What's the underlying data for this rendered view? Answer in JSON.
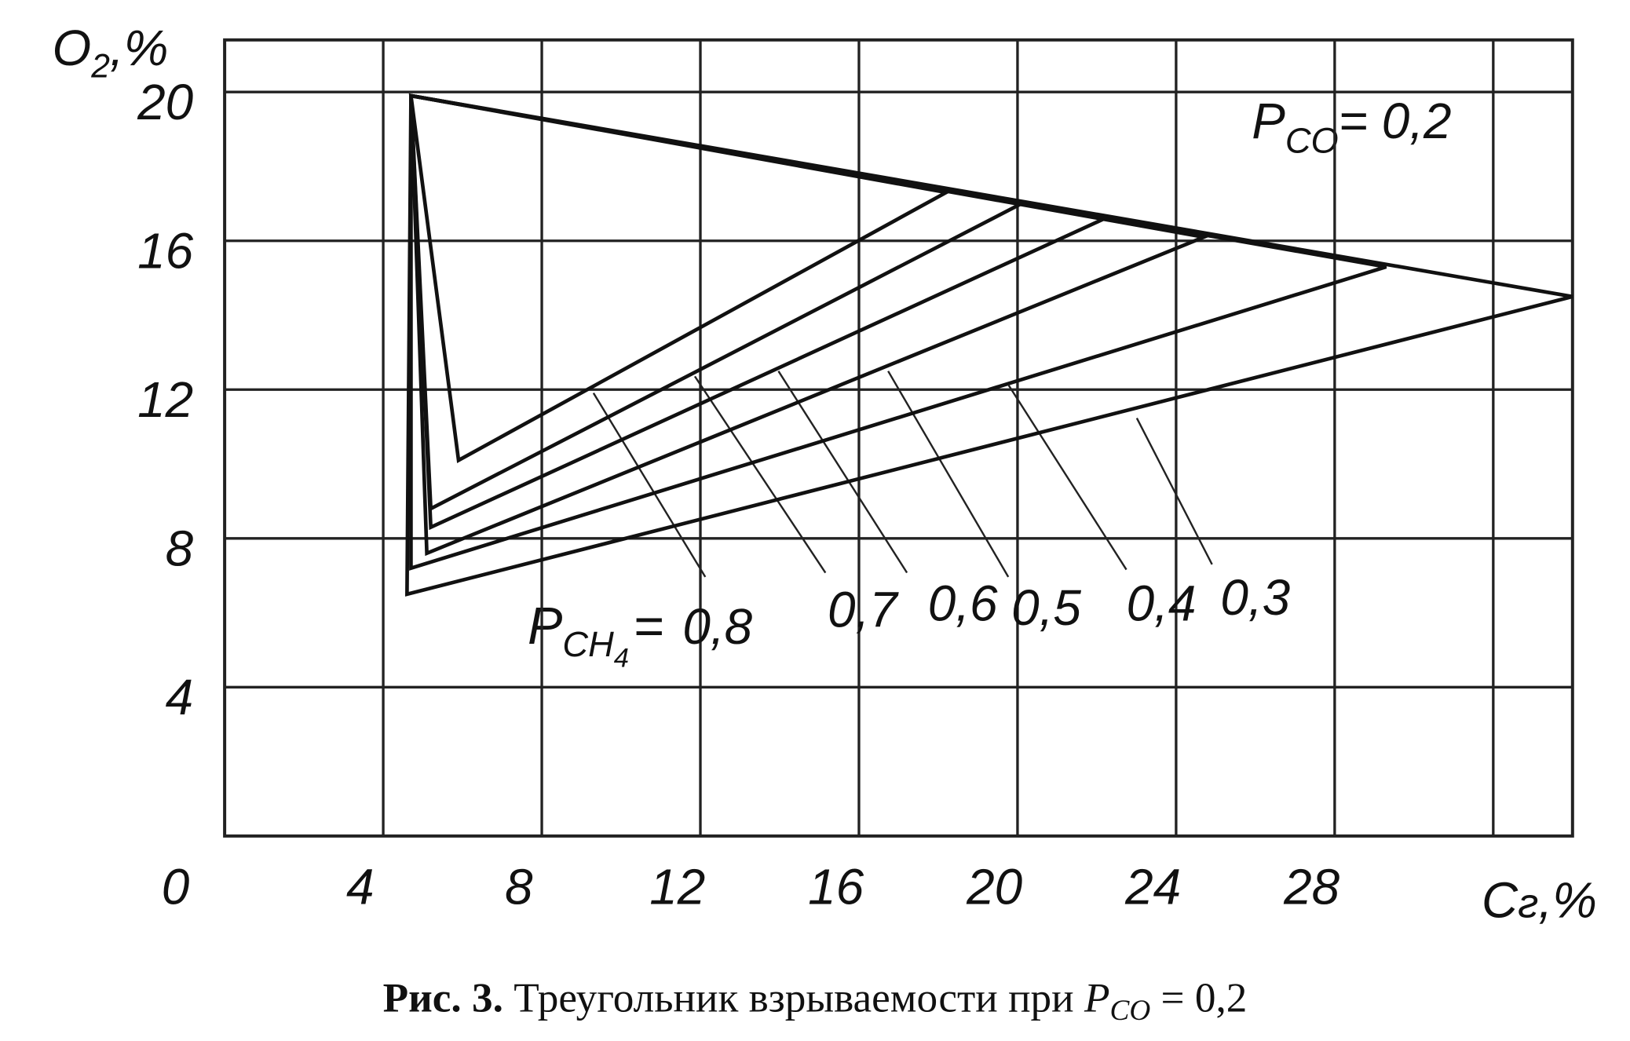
{
  "chart_data": {
    "type": "line",
    "y_label": {
      "main": "O",
      "sub": "2",
      "unit": ",%"
    },
    "x_label": {
      "main": "C",
      "sub": "г",
      "unit": ",%"
    },
    "xlim": [
      0,
      34
    ],
    "ylim": [
      0,
      21.4
    ],
    "xticks": [
      0,
      4,
      8,
      12,
      16,
      20,
      24,
      28,
      {
        "value": 32,
        "label": null
      }
    ],
    "yticks": [
      4,
      8,
      12,
      16,
      20
    ],
    "grid": true,
    "annotation": {
      "p": "P",
      "sub": "CO",
      "rest": "= 0,2"
    },
    "series_prefix": {
      "p": "P",
      "sub": "CH",
      "subsub": "4",
      "rest": "="
    },
    "series": [
      {
        "name": "0,8",
        "color": "#111111",
        "x": [
          4.7,
          5.9,
          18.2
        ],
        "y": [
          19.9,
          10.1,
          17.3
        ]
      },
      {
        "name": "0,7",
        "color": "#111111",
        "x": [
          4.7,
          5.2,
          20.1
        ],
        "y": [
          19.9,
          8.8,
          17.0
        ]
      },
      {
        "name": "0,6",
        "color": "#111111",
        "x": [
          4.7,
          5.2,
          22.2
        ],
        "y": [
          19.9,
          8.3,
          16.6
        ]
      },
      {
        "name": "0,5",
        "color": "#111111",
        "x": [
          4.7,
          5.1,
          24.7
        ],
        "y": [
          19.9,
          7.6,
          16.1
        ]
      },
      {
        "name": "0,4",
        "color": "#111111",
        "x": [
          4.7,
          4.7,
          29.3
        ],
        "y": [
          19.9,
          7.2,
          15.3
        ]
      },
      {
        "name": "0,3",
        "color": "#111111",
        "x": [
          4.7,
          4.6,
          34
        ],
        "y": [
          19.9,
          6.5,
          14.5
        ]
      }
    ],
    "caption": {
      "bold": "Рис. 3.",
      "text": "Треугольник взрываемости при",
      "p": "P",
      "sub": "CO",
      "rest": "= 0,2"
    }
  }
}
